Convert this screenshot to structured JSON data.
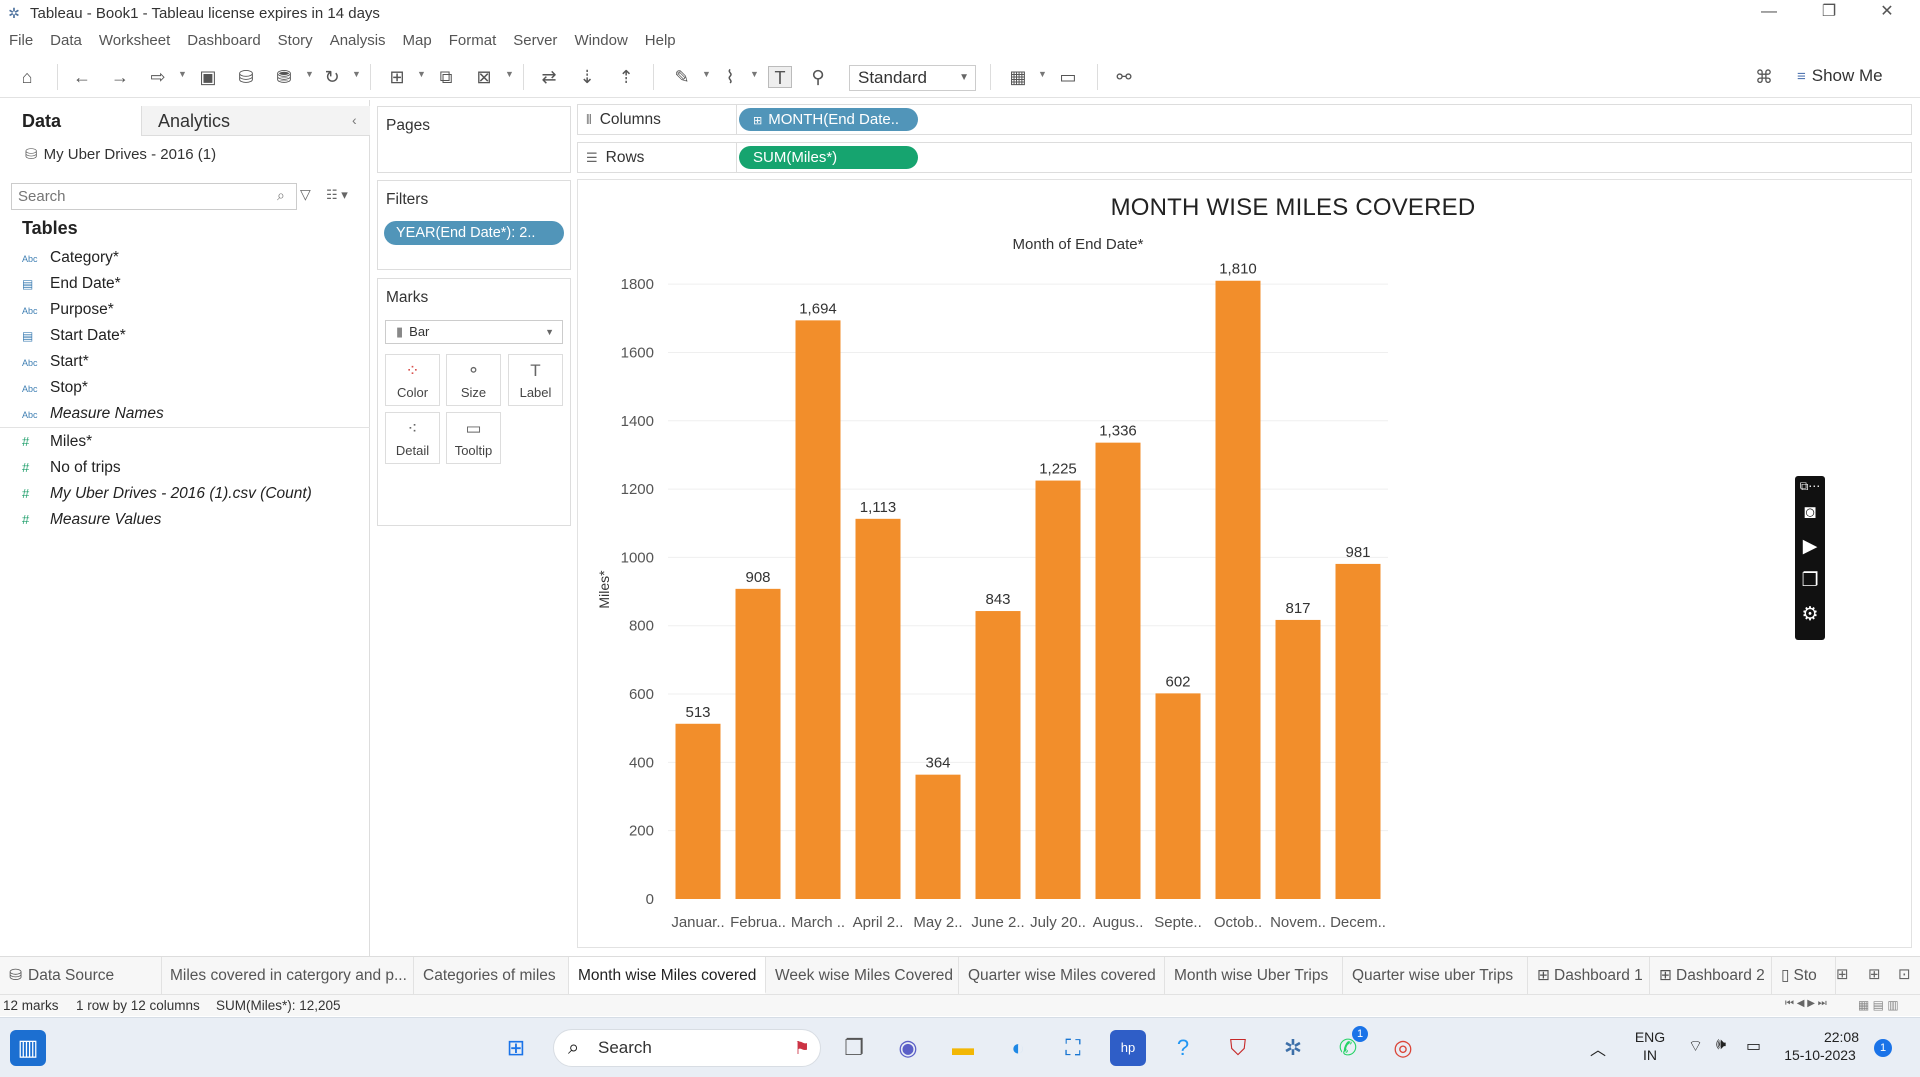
{
  "window": {
    "title": "Tableau - Book1 - Tableau license expires in 14 days"
  },
  "menu": [
    "File",
    "Data",
    "Worksheet",
    "Dashboard",
    "Story",
    "Analysis",
    "Map",
    "Format",
    "Server",
    "Window",
    "Help"
  ],
  "toolbar": {
    "fit_value": "Standard",
    "show_me_label": "Show Me"
  },
  "data_pane": {
    "tab_data": "Data",
    "tab_analytics": "Analytics",
    "datasource": "My Uber Drives - 2016 (1)",
    "search_placeholder": "Search",
    "tables_heading": "Tables",
    "fields": [
      {
        "type": "Abc",
        "name": "Category*"
      },
      {
        "type": "date",
        "name": "End Date*"
      },
      {
        "type": "Abc",
        "name": "Purpose*"
      },
      {
        "type": "date",
        "name": "Start Date*"
      },
      {
        "type": "Abc",
        "name": "Start*"
      },
      {
        "type": "Abc",
        "name": "Stop*"
      },
      {
        "type": "Abc",
        "name": "Measure Names"
      },
      {
        "type": "#",
        "name": "Miles*"
      },
      {
        "type": "#",
        "name": "No of trips"
      },
      {
        "type": "#",
        "name": "My Uber Drives - 2016 (1).csv (Count)"
      },
      {
        "type": "#",
        "name": "Measure Values"
      }
    ]
  },
  "cards": {
    "pages_title": "Pages",
    "filters_title": "Filters",
    "filter_pill": "YEAR(End Date*): 2..",
    "marks_title": "Marks",
    "mark_type": "Bar",
    "mark_buttons": [
      "Color",
      "Size",
      "Label",
      "Detail",
      "Tooltip"
    ]
  },
  "shelves": {
    "columns_label": "Columns",
    "columns_pill": "MONTH(End Date..",
    "rows_label": "Rows",
    "rows_pill": "SUM(Miles*)"
  },
  "chart_data": {
    "type": "bar",
    "title": "MONTH WISE MILES COVERED",
    "x_header": "Month of End Date*",
    "ylabel": "Miles*",
    "categories": [
      "Januar..",
      "Februa..",
      "March ..",
      "April 2..",
      "May 2..",
      "June 2..",
      "July 20..",
      "Augus..",
      "Septe..",
      "Octob..",
      "Novem..",
      "Decem.."
    ],
    "values": [
      513,
      908,
      1694,
      1113,
      364,
      843,
      1225,
      1336,
      602,
      1810,
      817,
      981
    ],
    "data_labels": [
      "513",
      "908",
      "1,694",
      "1,113",
      "364",
      "843",
      "1,225",
      "1,336",
      "602",
      "1,810",
      "817",
      "981"
    ],
    "ylim": [
      0,
      1900
    ],
    "y_ticks": [
      0,
      200,
      400,
      600,
      800,
      1000,
      1200,
      1400,
      1600,
      1800
    ],
    "grid": true,
    "bar_color": "#f28e2b"
  },
  "sheet_tabs": [
    "Data Source",
    "Miles covered in catergory and p...",
    "Categories of miles",
    "Month wise Miles covered",
    "Week wise Miles Covered",
    "Quarter wise Miles covered",
    "Month wise Uber Trips",
    "Quarter wise uber Trips",
    "Dashboard 1",
    "Dashboard 2",
    "Sto"
  ],
  "status": {
    "marks": "12 marks",
    "dims": "1 row by 12 columns",
    "sum": "SUM(Miles*): 12,205"
  },
  "taskbar": {
    "search_label": "Search",
    "lang_line1": "ENG",
    "lang_line2": "IN",
    "time": "22:08",
    "date": "15-10-2023",
    "notification_count": "1"
  }
}
